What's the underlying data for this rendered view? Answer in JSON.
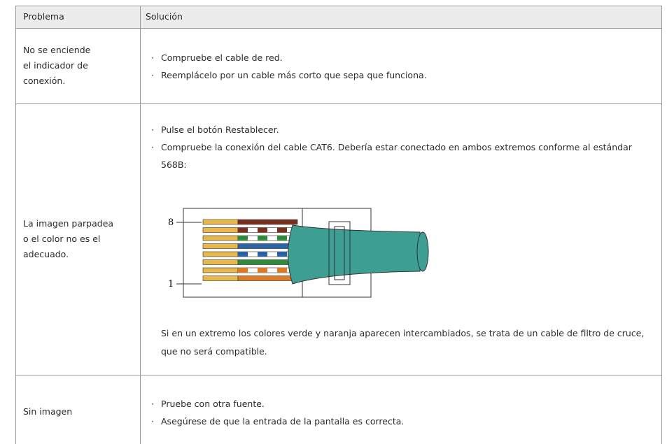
{
  "table": {
    "header": [
      "Problema",
      "Solución"
    ],
    "rows": [
      {
        "problem": [
          "No se enciende",
          "el indicador de",
          "conexión."
        ],
        "solution": {
          "bullets": [
            "Compruebe el cable de red.",
            "Reemplácelo por un cable más corto que sepa que funciona."
          ]
        }
      },
      {
        "problem": [
          "La imagen parpadea",
          "o el color no es el",
          "adecuado."
        ],
        "solution": {
          "bullets": [
            "Pulse el botón Restablecer.",
            "Compruebe la conexión del cable CAT6. Debería estar conectado en ambos extremos conforme al estándar 568B:"
          ],
          "diagram": {
            "top_pin": "8",
            "bottom_pin": "1"
          },
          "note": "Si en un extremo los colores verde y naranja aparecen intercambiados, se trata de un cable de filtro de cruce, que no será compatible."
        }
      },
      {
        "problem": [
          "Sin imagen"
        ],
        "solution": {
          "bullets": [
            "Pruebe con otra fuente.",
            "Asegúrese de que la entrada de la pantalla es correcta."
          ]
        }
      }
    ]
  }
}
